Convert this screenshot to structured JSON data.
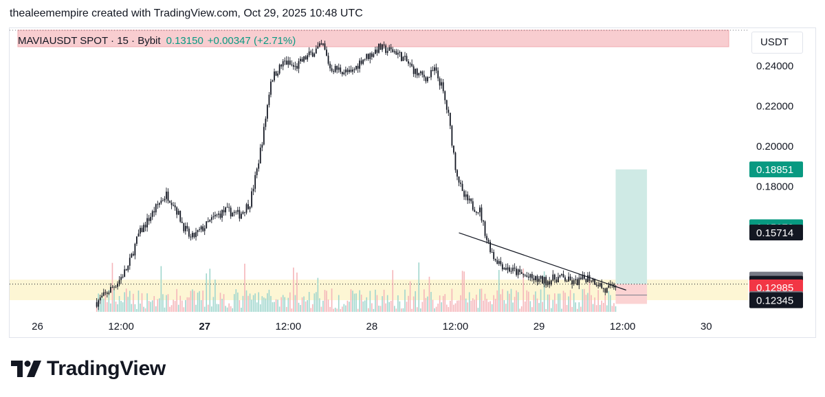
{
  "caption": "thealeemempire created with TradingView.com, Oct 29, 2025 10:48 UTC",
  "legend": {
    "symbol": "MAVIAUSDT SPOT · 15 · Bybit",
    "price": "0.13150",
    "change": "+0.00347 (+2.71%)"
  },
  "currency_button": "USDT",
  "brand": {
    "name": "TradingView",
    "logo_icon": "tradingview-logo-icon"
  },
  "colors": {
    "up": "#089981",
    "down": "#f23645",
    "volume_up": "#9fd6cd",
    "volume_down": "#f5b5b9",
    "resistance_zone": "#f8cdd0",
    "support_zone": "#fdf6d4",
    "target_zone": "#cfeae5",
    "stop_zone": "#fbd3d3",
    "price_line": "#1e222d"
  },
  "chart_data": {
    "type": "candlestick",
    "symbol": "MAVIAUSDT",
    "interval": "15",
    "exchange": "Bybit",
    "y_axis": {
      "unit": "USDT",
      "range": [
        0.1177,
        0.2577
      ],
      "ticks": [
        "0.24000",
        "0.22000",
        "0.20000",
        "0.18000"
      ]
    },
    "x_axis": {
      "range": [
        "2025-10-25T20:00",
        "2025-10-30T06:00"
      ],
      "ticks": [
        {
          "t": "2025-10-26T00:00",
          "label": "26",
          "bold": false
        },
        {
          "t": "2025-10-26T12:00",
          "label": "12:00",
          "bold": false
        },
        {
          "t": "2025-10-27T00:00",
          "label": "27",
          "bold": true
        },
        {
          "t": "2025-10-27T12:00",
          "label": "12:00",
          "bold": false
        },
        {
          "t": "2025-10-28T00:00",
          "label": "28",
          "bold": false
        },
        {
          "t": "2025-10-28T12:00",
          "label": "12:00",
          "bold": false
        },
        {
          "t": "2025-10-29T00:00",
          "label": "29",
          "bold": false
        },
        {
          "t": "2025-10-29T12:00",
          "label": "12:00",
          "bold": false
        },
        {
          "t": "2025-10-30T00:00",
          "label": "30",
          "bold": false
        }
      ]
    },
    "price_path": [
      [
        "2025-10-26T08:30",
        0.1225
      ],
      [
        "2025-10-26T09:30",
        0.1255
      ],
      [
        "2025-10-26T10:30",
        0.129
      ],
      [
        "2025-10-26T11:30",
        0.1325
      ],
      [
        "2025-10-26T13:00",
        0.14
      ],
      [
        "2025-10-26T14:30",
        0.156
      ],
      [
        "2025-10-26T16:00",
        0.164
      ],
      [
        "2025-10-26T17:30",
        0.172
      ],
      [
        "2025-10-26T18:30",
        0.176
      ],
      [
        "2025-10-26T19:30",
        0.172
      ],
      [
        "2025-10-26T21:00",
        0.16
      ],
      [
        "2025-10-26T22:00",
        0.154
      ],
      [
        "2025-10-27T00:00",
        0.16
      ],
      [
        "2025-10-27T01:30",
        0.165
      ],
      [
        "2025-10-27T03:00",
        0.168
      ],
      [
        "2025-10-27T05:00",
        0.166
      ],
      [
        "2025-10-27T06:30",
        0.172
      ],
      [
        "2025-10-27T07:30",
        0.188
      ],
      [
        "2025-10-27T08:30",
        0.208
      ],
      [
        "2025-10-27T09:30",
        0.233
      ],
      [
        "2025-10-27T10:30",
        0.238
      ],
      [
        "2025-10-27T11:30",
        0.242
      ],
      [
        "2025-10-27T13:00",
        0.239
      ],
      [
        "2025-10-27T14:30",
        0.244
      ],
      [
        "2025-10-27T16:00",
        0.248
      ],
      [
        "2025-10-27T17:00",
        0.25
      ],
      [
        "2025-10-27T18:00",
        0.239
      ],
      [
        "2025-10-27T19:30",
        0.238
      ],
      [
        "2025-10-27T21:00",
        0.236
      ],
      [
        "2025-10-27T22:30",
        0.243
      ],
      [
        "2025-10-28T00:00",
        0.246
      ],
      [
        "2025-10-28T01:00",
        0.249
      ],
      [
        "2025-10-28T02:00",
        0.248
      ],
      [
        "2025-10-28T03:30",
        0.247
      ],
      [
        "2025-10-28T05:00",
        0.242
      ],
      [
        "2025-10-28T06:30",
        0.236
      ],
      [
        "2025-10-28T08:00",
        0.234
      ],
      [
        "2025-10-28T09:00",
        0.238
      ],
      [
        "2025-10-28T10:00",
        0.23
      ],
      [
        "2025-10-28T11:00",
        0.215
      ],
      [
        "2025-10-28T12:00",
        0.19
      ],
      [
        "2025-10-28T13:00",
        0.176
      ],
      [
        "2025-10-28T14:30",
        0.17
      ],
      [
        "2025-10-28T15:30",
        0.168
      ],
      [
        "2025-10-28T16:30",
        0.154
      ],
      [
        "2025-10-28T17:30",
        0.145
      ],
      [
        "2025-10-28T19:00",
        0.14
      ],
      [
        "2025-10-28T21:00",
        0.137
      ],
      [
        "2025-10-28T23:00",
        0.134
      ],
      [
        "2025-10-29T01:00",
        0.133
      ],
      [
        "2025-10-29T03:00",
        0.135
      ],
      [
        "2025-10-29T05:00",
        0.132
      ],
      [
        "2025-10-29T07:00",
        0.135
      ],
      [
        "2025-10-29T08:30",
        0.132
      ],
      [
        "2025-10-29T09:30",
        0.128
      ],
      [
        "2025-10-29T10:30",
        0.13
      ],
      [
        "2025-10-29T11:00",
        0.1315
      ]
    ],
    "drawings": {
      "trendline": {
        "from": [
          "2025-10-28T12:30",
          0.157
        ],
        "to": [
          "2025-10-29T12:30",
          0.1285
        ]
      },
      "resistance_zone": {
        "top": 0.2577,
        "bottom": 0.2495,
        "from": "2025-10-25T20:00",
        "to": "2025-10-30T06:00"
      },
      "support_zone": {
        "top": 0.1337,
        "bottom": 0.1235,
        "from": "2025-10-25T20:00",
        "to": "2025-10-30T06:00"
      },
      "position_target": {
        "top": 0.18851,
        "bottom": 0.1315,
        "from": "2025-10-29T11:00",
        "to": "2025-10-29T15:30"
      },
      "position_stop": {
        "top": 0.1315,
        "bottom": 0.12985,
        "from": "2025-10-29T11:00",
        "to": "2025-10-29T15:30"
      }
    },
    "price_labels": [
      {
        "value": 0.18851,
        "text": "0.18851",
        "bg": "#089981",
        "fg": "#ffffff"
      },
      {
        "value": 0.15973,
        "text": "0.15973",
        "bg": "#089981",
        "fg": "#ffffff"
      },
      {
        "value": 0.15714,
        "text": "0.15714",
        "bg": "#131722",
        "fg": "#ffffff"
      },
      {
        "value": 0.1337,
        "text": "0.13370",
        "bg": "#787b86",
        "fg": "#ffffff"
      },
      {
        "value": 0.1315,
        "text": "0.13150",
        "sub": "11:57",
        "bg": "#131722",
        "fg": "#ffffff"
      },
      {
        "value": 0.12985,
        "text": "0.12985",
        "bg": "#f23645",
        "fg": "#ffffff"
      },
      {
        "value": 0.12406,
        "text": "0.12406",
        "bg": "#787b86",
        "fg": "#ffffff"
      },
      {
        "value": 0.12345,
        "text": "0.12345",
        "bg": "#131722",
        "fg": "#ffffff"
      }
    ],
    "last_price": 0.1315,
    "countdown": "11:57",
    "grid": false
  }
}
